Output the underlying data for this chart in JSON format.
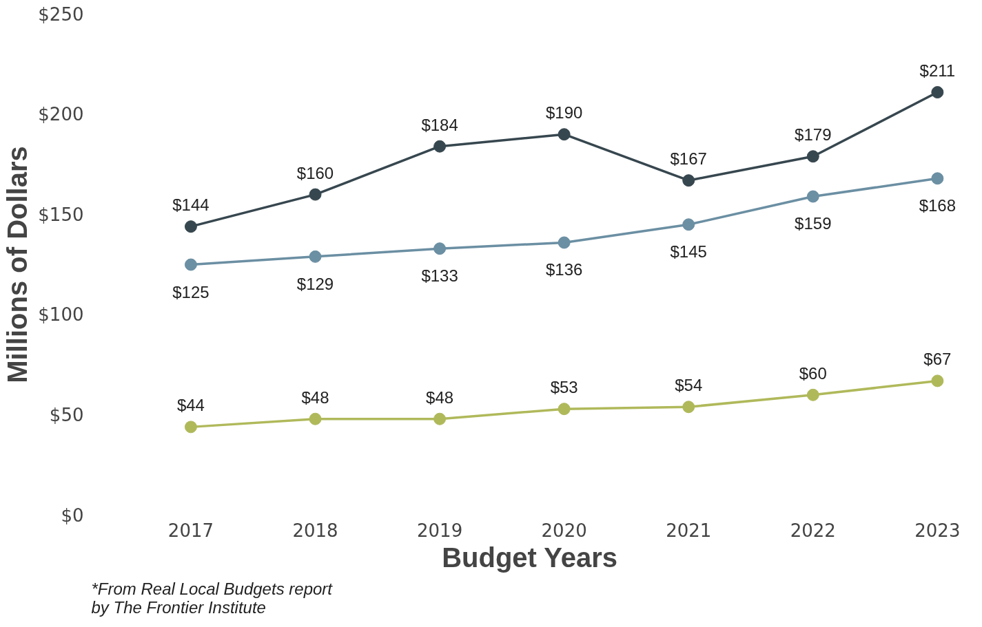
{
  "chart_data": {
    "type": "line",
    "xlabel": "Budget Years",
    "ylabel": "Millions of Dollars",
    "annotations": [
      "*From Real Local Budgets report\nby The Frontier Institute"
    ],
    "categories": [
      "2017",
      "2018",
      "2019",
      "2020",
      "2021",
      "2022",
      "2023"
    ],
    "series": [
      {
        "color": "#37474f",
        "values": [
          144,
          160,
          184,
          190,
          167,
          179,
          211
        ],
        "value_labels": [
          "$144",
          "$160",
          "$184",
          "$190",
          "$167",
          "$179",
          "$211"
        ]
      },
      {
        "color": "#6b8fa3",
        "values": [
          125,
          129,
          133,
          136,
          145,
          159,
          168
        ],
        "value_labels": [
          "$125",
          "$129",
          "$133",
          "$136",
          "$145",
          "$159",
          "$168"
        ]
      },
      {
        "color": "#b0b95a",
        "values": [
          44,
          48,
          48,
          53,
          54,
          60,
          67
        ],
        "value_labels": [
          "$44",
          "$48",
          "$48",
          "$53",
          "$54",
          "$60",
          "$67"
        ]
      }
    ],
    "ylim": [
      0,
      250
    ],
    "yticks": [
      {
        "value": 0,
        "label": "$0"
      },
      {
        "value": 50,
        "label": "$50"
      },
      {
        "value": 100,
        "label": "$100"
      },
      {
        "value": 150,
        "label": "$150"
      },
      {
        "value": 200,
        "label": "$200"
      },
      {
        "value": 250,
        "label": "$250"
      }
    ],
    "marker": "circle",
    "grid": false
  }
}
